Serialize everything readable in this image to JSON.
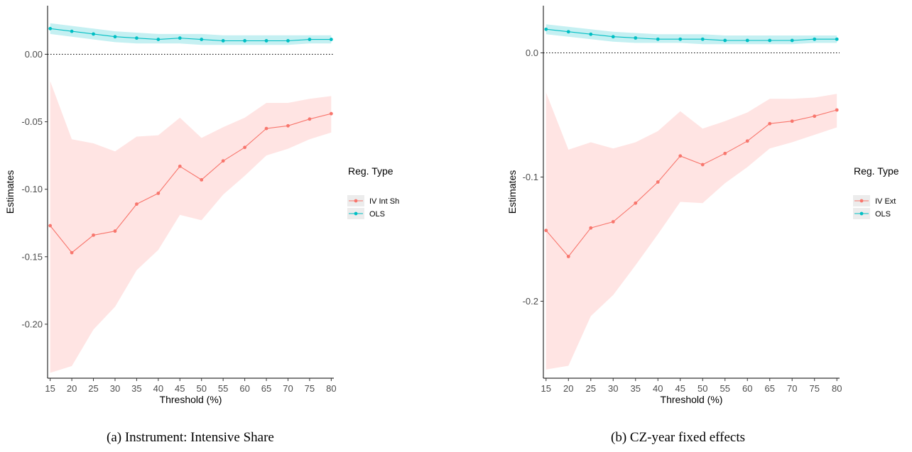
{
  "chart_data": [
    {
      "type": "line",
      "caption": "(a) Instrument: Intensive Share",
      "xlabel": "Threshold (%)",
      "ylabel": "Estimates",
      "x": [
        15,
        20,
        25,
        30,
        35,
        40,
        45,
        50,
        55,
        60,
        65,
        70,
        75,
        80
      ],
      "ylim": [
        -0.24,
        0.036
      ],
      "yticks": [
        -0.2,
        -0.15,
        -0.1,
        -0.05,
        0.0
      ],
      "ytick_labels": [
        "-0.20",
        "-0.15",
        "-0.10",
        "-0.05",
        "0.00"
      ],
      "reference_line": 0,
      "legend": {
        "title": "Reg. Type",
        "position": "right"
      },
      "series": [
        {
          "name": "IV Int Sh",
          "color": "#F8766D",
          "band_color": "#FFE4E3",
          "values": [
            -0.127,
            -0.147,
            -0.134,
            -0.131,
            -0.111,
            -0.103,
            -0.083,
            -0.093,
            -0.079,
            -0.069,
            -0.055,
            -0.053,
            -0.048,
            -0.044
          ],
          "lower": [
            -0.236,
            -0.231,
            -0.204,
            -0.187,
            -0.16,
            -0.145,
            -0.119,
            -0.123,
            -0.104,
            -0.09,
            -0.075,
            -0.07,
            -0.063,
            -0.058
          ],
          "upper": [
            -0.02,
            -0.063,
            -0.066,
            -0.072,
            -0.061,
            -0.06,
            -0.047,
            -0.062,
            -0.054,
            -0.047,
            -0.036,
            -0.036,
            -0.033,
            -0.031
          ]
        },
        {
          "name": "OLS",
          "color": "#00BFC4",
          "band_color": "#C5F0F2",
          "values": [
            0.019,
            0.017,
            0.015,
            0.013,
            0.012,
            0.011,
            0.012,
            0.011,
            0.01,
            0.01,
            0.01,
            0.01,
            0.011,
            0.011
          ],
          "lower": [
            0.015,
            0.013,
            0.011,
            0.009,
            0.008,
            0.008,
            0.008,
            0.007,
            0.007,
            0.007,
            0.007,
            0.007,
            0.008,
            0.008
          ],
          "upper": [
            0.023,
            0.021,
            0.019,
            0.017,
            0.016,
            0.015,
            0.015,
            0.015,
            0.014,
            0.014,
            0.014,
            0.014,
            0.014,
            0.014
          ]
        }
      ]
    },
    {
      "type": "line",
      "caption": "(b) CZ-year fixed effects",
      "xlabel": "Threshold (%)",
      "ylabel": "Estimates",
      "x": [
        15,
        20,
        25,
        30,
        35,
        40,
        45,
        50,
        55,
        60,
        65,
        70,
        75,
        80
      ],
      "ylim": [
        -0.262,
        0.038
      ],
      "yticks": [
        -0.2,
        -0.1,
        0.0
      ],
      "ytick_labels": [
        "-0.2",
        "-0.1",
        "0.0"
      ],
      "reference_line": 0,
      "legend": {
        "title": "Reg. Type",
        "position": "right"
      },
      "series": [
        {
          "name": "IV Ext",
          "color": "#F8766D",
          "band_color": "#FFE4E3",
          "values": [
            -0.143,
            -0.164,
            -0.141,
            -0.136,
            -0.121,
            -0.104,
            -0.083,
            -0.09,
            -0.081,
            -0.071,
            -0.057,
            -0.055,
            -0.051,
            -0.046
          ],
          "lower": [
            -0.255,
            -0.252,
            -0.212,
            -0.195,
            -0.171,
            -0.146,
            -0.12,
            -0.121,
            -0.105,
            -0.092,
            -0.077,
            -0.072,
            -0.066,
            -0.06
          ],
          "upper": [
            -0.032,
            -0.078,
            -0.072,
            -0.077,
            -0.072,
            -0.063,
            -0.047,
            -0.061,
            -0.055,
            -0.048,
            -0.037,
            -0.037,
            -0.036,
            -0.033
          ]
        },
        {
          "name": "OLS",
          "color": "#00BFC4",
          "band_color": "#C5F0F2",
          "values": [
            0.019,
            0.017,
            0.015,
            0.013,
            0.012,
            0.011,
            0.011,
            0.011,
            0.01,
            0.01,
            0.01,
            0.01,
            0.011,
            0.011
          ],
          "lower": [
            0.015,
            0.013,
            0.011,
            0.009,
            0.008,
            0.008,
            0.008,
            0.007,
            0.007,
            0.007,
            0.007,
            0.007,
            0.008,
            0.008
          ],
          "upper": [
            0.023,
            0.021,
            0.019,
            0.017,
            0.016,
            0.015,
            0.015,
            0.015,
            0.014,
            0.014,
            0.014,
            0.014,
            0.014,
            0.014
          ]
        }
      ]
    }
  ]
}
